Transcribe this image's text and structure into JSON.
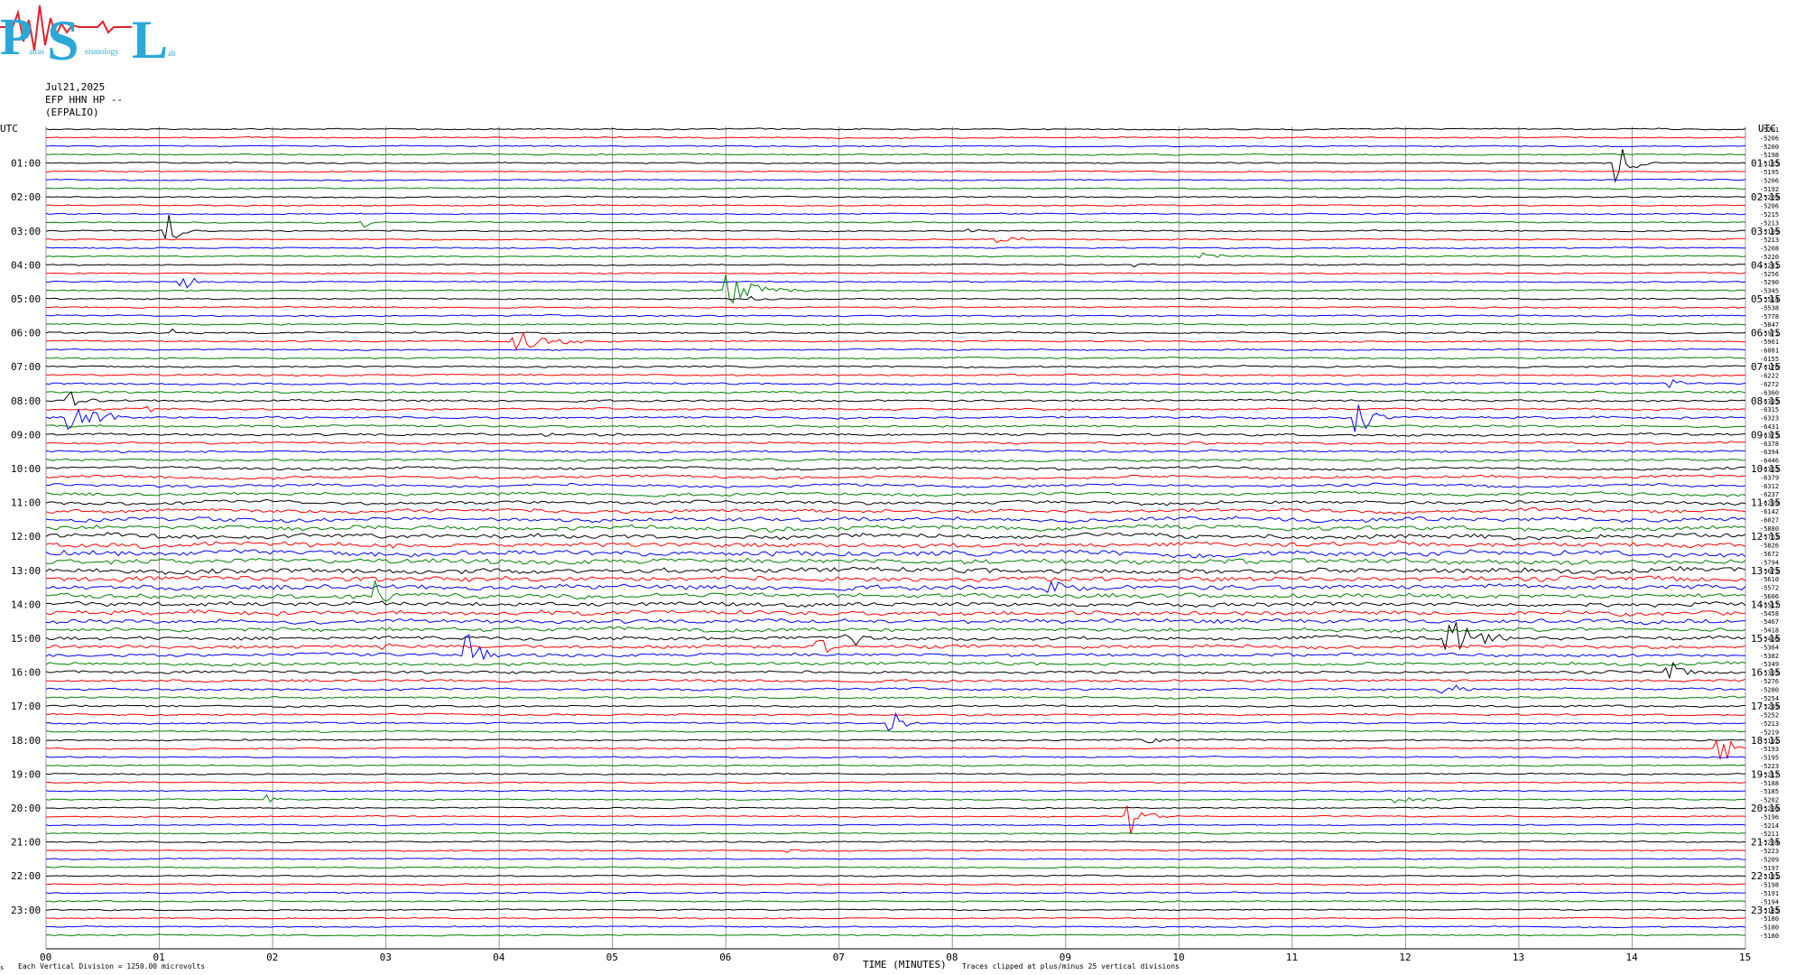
{
  "logo": {
    "big_letters": [
      "P",
      "S",
      "L"
    ],
    "small_words": [
      "atras",
      "eismology",
      "ab"
    ],
    "color": "#2ba8d8",
    "wave_color": "#e0242c"
  },
  "header": {
    "date": "Jul21,2025",
    "channel": "EFP HHN HP --",
    "station": "(EFPALIO)"
  },
  "axis": {
    "left_title": "UTC",
    "right_title": "UTC",
    "left_hours": [
      "01:00",
      "02:00",
      "03:00",
      "04:00",
      "05:00",
      "06:00",
      "07:00",
      "08:00",
      "09:00",
      "10:00",
      "11:00",
      "12:00",
      "13:00",
      "14:00",
      "15:00",
      "16:00",
      "17:00",
      "18:00",
      "19:00",
      "20:00",
      "21:00",
      "22:00",
      "23:00"
    ],
    "right_hours": [
      "01:15",
      "02:15",
      "03:15",
      "04:15",
      "05:15",
      "06:15",
      "07:15",
      "08:15",
      "09:15",
      "10:15",
      "11:15",
      "12:15",
      "13:15",
      "14:15",
      "15:15",
      "16:15",
      "17:15",
      "18:15",
      "19:15",
      "20:15",
      "21:15",
      "22:15",
      "23:15"
    ],
    "x_ticks": [
      "00",
      "01",
      "02",
      "03",
      "04",
      "05",
      "06",
      "07",
      "08",
      "09",
      "10",
      "11",
      "12",
      "13",
      "14",
      "15"
    ],
    "xlabel": "TIME (MINUTES)",
    "footer_left": "Each Vertical Division = 1250.00 microvolts",
    "footer_right": "Traces clipped at plus/minus 25 vertical divisions",
    "corner_mark": "s"
  },
  "chart_data": {
    "type": "line",
    "title": "Jul21,2025 EFP HHN HP -- (EFPALIO)",
    "xlabel": "TIME (MINUTES)",
    "x_range": [
      0,
      15
    ],
    "rows": 96,
    "minutes_per_row": 15,
    "trace_colors": [
      "#000000",
      "#ff0000",
      "#0000ff",
      "#008000"
    ],
    "grid": "vertical lines every minute",
    "row_offsets": [
      "-5201",
      "-5206",
      "-5200",
      "-5198",
      "-5185",
      "-5195",
      "-5206",
      "-5192",
      "-5209",
      "-5206",
      "-5215",
      "-5213",
      "-5199",
      "-5213",
      "-5208",
      "-5220",
      "-5241",
      "-5256",
      "-5290",
      "-5345",
      "-5514",
      "-5538",
      "-5778",
      "-5847",
      "-5971",
      "-5961",
      "-6081",
      "-6155",
      "-6176",
      "-6222",
      "-6272",
      "-6360",
      "-6395",
      "-6315",
      "-6323",
      "-6431",
      "-6375",
      "-6378",
      "-6394",
      "-6446",
      "-6365",
      "-6379",
      "-6312",
      "-6237",
      "-6299",
      "-6142",
      "-6027",
      "-5880",
      "-5763",
      "-5826",
      "-5672",
      "-5794",
      "-5673",
      "-5610",
      "-5572",
      "-5606",
      "-5517",
      "-5458",
      "-5467",
      "-5418",
      "-5406",
      "-5364",
      "-5382",
      "-5349",
      "-5305",
      "-5276",
      "-5280",
      "-5254",
      "-5249",
      "-5252",
      "-5213",
      "-5219",
      "-5192",
      "-5193",
      "-5195",
      "-5223",
      "-5217",
      "-5188",
      "-5185",
      "-5202",
      "-5200",
      "-5196",
      "-5214",
      "-5211",
      "-5204",
      "-5223",
      "-5209",
      "-5197",
      "-5191",
      "-5198",
      "-5191",
      "-5194",
      "-5185",
      "-5180",
      "-5180",
      "-5180"
    ],
    "noise_profile": [
      1,
      1,
      1,
      1,
      1,
      1,
      1,
      1,
      1,
      1,
      1,
      1,
      1,
      1,
      1,
      1,
      1,
      1,
      1,
      1,
      1.1,
      1.1,
      1.2,
      1.2,
      1.2,
      1.2,
      1.2,
      1.3,
      1.3,
      1.4,
      1.5,
      1.6,
      1.6,
      1.6,
      1.7,
      1.7,
      1.8,
      1.8,
      1.8,
      1.9,
      2,
      2.1,
      2.2,
      2.3,
      2.6,
      2.8,
      3.2,
      3.4,
      3.6,
      3.8,
      4,
      4,
      4,
      4,
      3.8,
      3.6,
      3.4,
      3.4,
      3.2,
      3,
      2.9,
      2.8,
      2.6,
      2.4,
      2.2,
      2,
      1.8,
      1.6,
      1.5,
      1.4,
      1.3,
      1.2,
      1.2,
      1.1,
      1.1,
      1.1,
      1.1,
      1,
      1,
      1,
      1,
      1,
      1,
      1,
      1,
      1,
      1,
      1,
      1,
      1,
      1,
      1,
      1,
      1,
      1,
      1
    ],
    "events": [
      {
        "row": 3,
        "minute": 4.85,
        "amp": 5,
        "dur": 0.08
      },
      {
        "row": 4,
        "minute": 13.85,
        "amp": 28,
        "dur": 0.12
      },
      {
        "row": 12,
        "minute": 1.05,
        "amp": 30,
        "dur": 0.1
      },
      {
        "row": 11,
        "minute": 2.8,
        "amp": 8,
        "dur": 0.05
      },
      {
        "row": 12,
        "minute": 8.15,
        "amp": 5,
        "dur": 0.1
      },
      {
        "row": 13,
        "minute": 8.4,
        "amp": 5,
        "dur": 0.2
      },
      {
        "row": 15,
        "minute": 10.2,
        "amp": 5,
        "dur": 0.2
      },
      {
        "row": 16,
        "minute": 9.6,
        "amp": 4,
        "dur": 0.15
      },
      {
        "row": 18,
        "minute": 1.2,
        "amp": 16,
        "dur": 0.08
      },
      {
        "row": 19,
        "minute": 6.0,
        "amp": 20,
        "dur": 0.25
      },
      {
        "row": 20,
        "minute": 6.2,
        "amp": 6,
        "dur": 0.1
      },
      {
        "row": 24,
        "minute": 1.1,
        "amp": 5,
        "dur": 0.15
      },
      {
        "row": 25,
        "minute": 4.1,
        "amp": 14,
        "dur": 0.3
      },
      {
        "row": 32,
        "minute": 0.2,
        "amp": 12,
        "dur": 0.1
      },
      {
        "row": 33,
        "minute": 0.9,
        "amp": 4,
        "dur": 0.1
      },
      {
        "row": 34,
        "minute": 0.2,
        "amp": 30,
        "dur": 0.18
      },
      {
        "row": 34,
        "minute": 11.55,
        "amp": 34,
        "dur": 0.1
      },
      {
        "row": 30,
        "minute": 14.3,
        "amp": 6,
        "dur": 0.12
      },
      {
        "row": 36,
        "minute": 4.4,
        "amp": 4,
        "dur": 0.1
      },
      {
        "row": 37,
        "minute": 10.1,
        "amp": 4,
        "dur": 0.1
      },
      {
        "row": 55,
        "minute": 2.9,
        "amp": 28,
        "dur": 0.1
      },
      {
        "row": 54,
        "minute": 8.85,
        "amp": 26,
        "dur": 0.1
      },
      {
        "row": 60,
        "minute": 7.05,
        "amp": 24,
        "dur": 0.1
      },
      {
        "row": 61,
        "minute": 6.8,
        "amp": 30,
        "dur": 0.08
      },
      {
        "row": 62,
        "minute": 3.7,
        "amp": 32,
        "dur": 0.1
      },
      {
        "row": 60,
        "minute": 12.35,
        "amp": 32,
        "dur": 0.2
      },
      {
        "row": 61,
        "minute": 2.95,
        "amp": 12,
        "dur": 0.08
      },
      {
        "row": 64,
        "minute": 14.3,
        "amp": 24,
        "dur": 0.1
      },
      {
        "row": 66,
        "minute": 12.3,
        "amp": 18,
        "dur": 0.1
      },
      {
        "row": 70,
        "minute": 7.45,
        "amp": 18,
        "dur": 0.1
      },
      {
        "row": 73,
        "minute": 14.75,
        "amp": 20,
        "dur": 0.2
      },
      {
        "row": 72,
        "minute": 9.7,
        "amp": 4,
        "dur": 0.2
      },
      {
        "row": 79,
        "minute": 1.95,
        "amp": 7,
        "dur": 0.06
      },
      {
        "row": 81,
        "minute": 9.55,
        "amp": 30,
        "dur": 0.12
      },
      {
        "row": 79,
        "minute": 11.9,
        "amp": 4,
        "dur": 0.25
      },
      {
        "row": 85,
        "minute": 6.5,
        "amp": 3,
        "dur": 0.2
      }
    ]
  }
}
